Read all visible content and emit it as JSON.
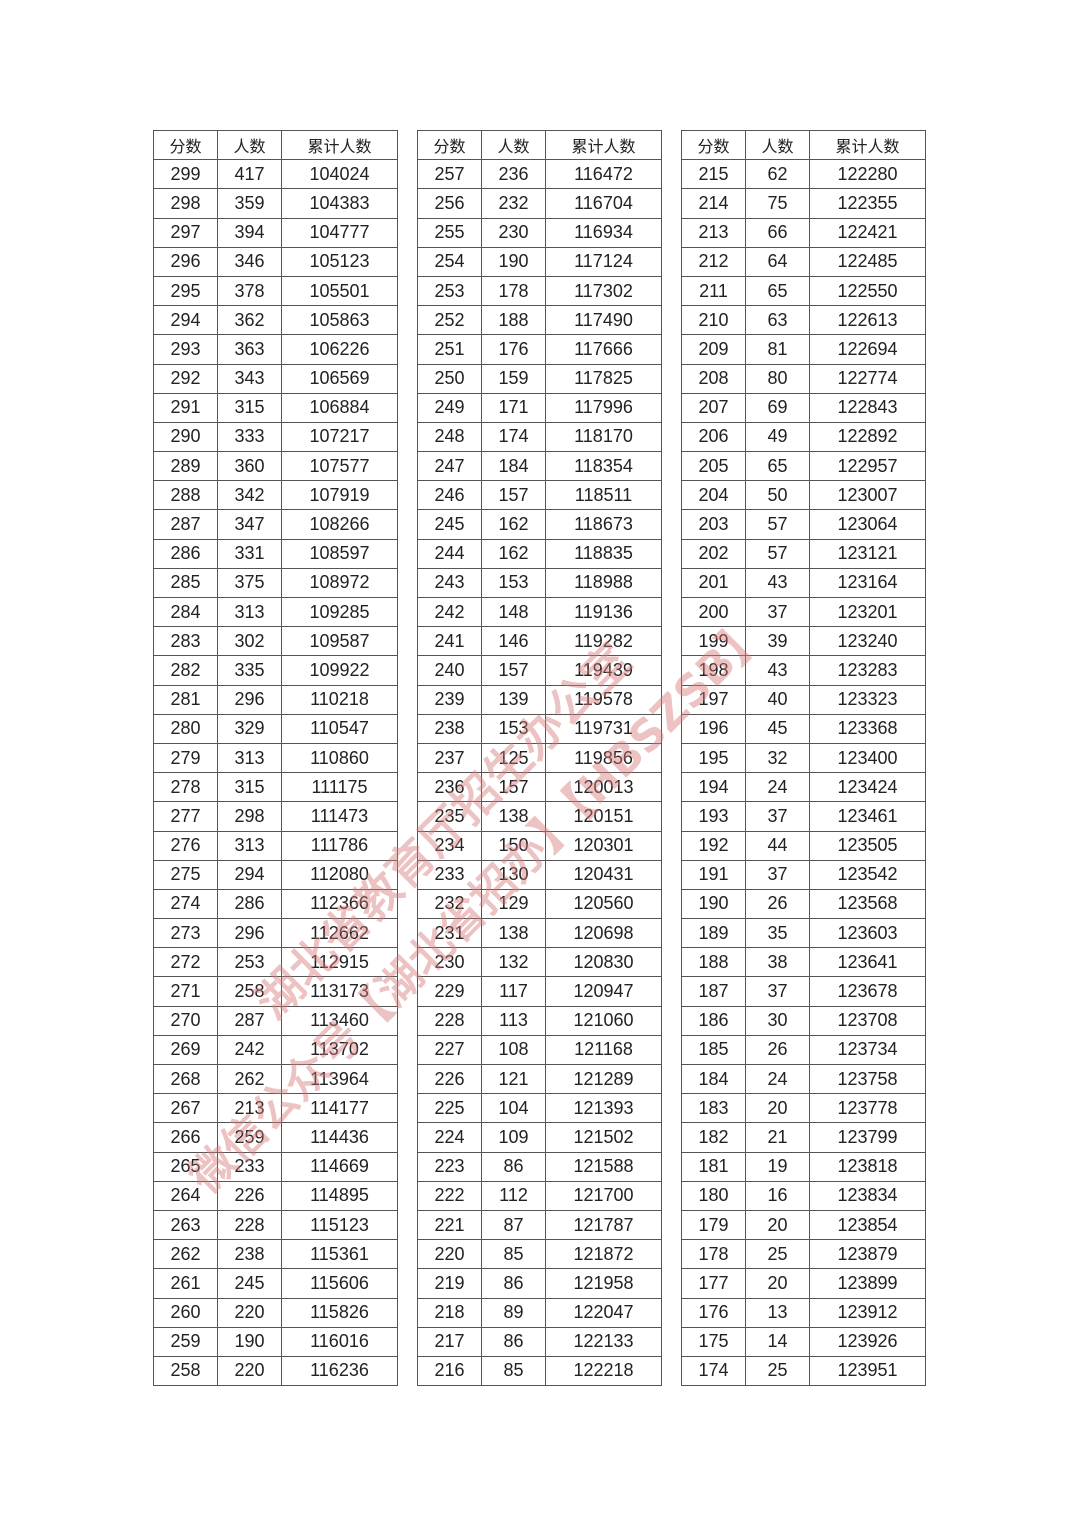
{
  "headers": [
    "分数",
    "人数",
    "累计人数"
  ],
  "watermark": {
    "line1": "湖北省教育厅招生办公室",
    "line2": "微信公众号【湖北省招办】【HBSZSB】",
    "color": "#d87878"
  },
  "tables": [
    {
      "rows": [
        [
          "299",
          "417",
          "104024"
        ],
        [
          "298",
          "359",
          "104383"
        ],
        [
          "297",
          "394",
          "104777"
        ],
        [
          "296",
          "346",
          "105123"
        ],
        [
          "295",
          "378",
          "105501"
        ],
        [
          "294",
          "362",
          "105863"
        ],
        [
          "293",
          "363",
          "106226"
        ],
        [
          "292",
          "343",
          "106569"
        ],
        [
          "291",
          "315",
          "106884"
        ],
        [
          "290",
          "333",
          "107217"
        ],
        [
          "289",
          "360",
          "107577"
        ],
        [
          "288",
          "342",
          "107919"
        ],
        [
          "287",
          "347",
          "108266"
        ],
        [
          "286",
          "331",
          "108597"
        ],
        [
          "285",
          "375",
          "108972"
        ],
        [
          "284",
          "313",
          "109285"
        ],
        [
          "283",
          "302",
          "109587"
        ],
        [
          "282",
          "335",
          "109922"
        ],
        [
          "281",
          "296",
          "110218"
        ],
        [
          "280",
          "329",
          "110547"
        ],
        [
          "279",
          "313",
          "110860"
        ],
        [
          "278",
          "315",
          "111175"
        ],
        [
          "277",
          "298",
          "111473"
        ],
        [
          "276",
          "313",
          "111786"
        ],
        [
          "275",
          "294",
          "112080"
        ],
        [
          "274",
          "286",
          "112366"
        ],
        [
          "273",
          "296",
          "112662"
        ],
        [
          "272",
          "253",
          "112915"
        ],
        [
          "271",
          "258",
          "113173"
        ],
        [
          "270",
          "287",
          "113460"
        ],
        [
          "269",
          "242",
          "113702"
        ],
        [
          "268",
          "262",
          "113964"
        ],
        [
          "267",
          "213",
          "114177"
        ],
        [
          "266",
          "259",
          "114436"
        ],
        [
          "265",
          "233",
          "114669"
        ],
        [
          "264",
          "226",
          "114895"
        ],
        [
          "263",
          "228",
          "115123"
        ],
        [
          "262",
          "238",
          "115361"
        ],
        [
          "261",
          "245",
          "115606"
        ],
        [
          "260",
          "220",
          "115826"
        ],
        [
          "259",
          "190",
          "116016"
        ],
        [
          "258",
          "220",
          "116236"
        ]
      ]
    },
    {
      "rows": [
        [
          "257",
          "236",
          "116472"
        ],
        [
          "256",
          "232",
          "116704"
        ],
        [
          "255",
          "230",
          "116934"
        ],
        [
          "254",
          "190",
          "117124"
        ],
        [
          "253",
          "178",
          "117302"
        ],
        [
          "252",
          "188",
          "117490"
        ],
        [
          "251",
          "176",
          "117666"
        ],
        [
          "250",
          "159",
          "117825"
        ],
        [
          "249",
          "171",
          "117996"
        ],
        [
          "248",
          "174",
          "118170"
        ],
        [
          "247",
          "184",
          "118354"
        ],
        [
          "246",
          "157",
          "118511"
        ],
        [
          "245",
          "162",
          "118673"
        ],
        [
          "244",
          "162",
          "118835"
        ],
        [
          "243",
          "153",
          "118988"
        ],
        [
          "242",
          "148",
          "119136"
        ],
        [
          "241",
          "146",
          "119282"
        ],
        [
          "240",
          "157",
          "119439"
        ],
        [
          "239",
          "139",
          "119578"
        ],
        [
          "238",
          "153",
          "119731"
        ],
        [
          "237",
          "125",
          "119856"
        ],
        [
          "236",
          "157",
          "120013"
        ],
        [
          "235",
          "138",
          "120151"
        ],
        [
          "234",
          "150",
          "120301"
        ],
        [
          "233",
          "130",
          "120431"
        ],
        [
          "232",
          "129",
          "120560"
        ],
        [
          "231",
          "138",
          "120698"
        ],
        [
          "230",
          "132",
          "120830"
        ],
        [
          "229",
          "117",
          "120947"
        ],
        [
          "228",
          "113",
          "121060"
        ],
        [
          "227",
          "108",
          "121168"
        ],
        [
          "226",
          "121",
          "121289"
        ],
        [
          "225",
          "104",
          "121393"
        ],
        [
          "224",
          "109",
          "121502"
        ],
        [
          "223",
          "86",
          "121588"
        ],
        [
          "222",
          "112",
          "121700"
        ],
        [
          "221",
          "87",
          "121787"
        ],
        [
          "220",
          "85",
          "121872"
        ],
        [
          "219",
          "86",
          "121958"
        ],
        [
          "218",
          "89",
          "122047"
        ],
        [
          "217",
          "86",
          "122133"
        ],
        [
          "216",
          "85",
          "122218"
        ]
      ]
    },
    {
      "rows": [
        [
          "215",
          "62",
          "122280"
        ],
        [
          "214",
          "75",
          "122355"
        ],
        [
          "213",
          "66",
          "122421"
        ],
        [
          "212",
          "64",
          "122485"
        ],
        [
          "211",
          "65",
          "122550"
        ],
        [
          "210",
          "63",
          "122613"
        ],
        [
          "209",
          "81",
          "122694"
        ],
        [
          "208",
          "80",
          "122774"
        ],
        [
          "207",
          "69",
          "122843"
        ],
        [
          "206",
          "49",
          "122892"
        ],
        [
          "205",
          "65",
          "122957"
        ],
        [
          "204",
          "50",
          "123007"
        ],
        [
          "203",
          "57",
          "123064"
        ],
        [
          "202",
          "57",
          "123121"
        ],
        [
          "201",
          "43",
          "123164"
        ],
        [
          "200",
          "37",
          "123201"
        ],
        [
          "199",
          "39",
          "123240"
        ],
        [
          "198",
          "43",
          "123283"
        ],
        [
          "197",
          "40",
          "123323"
        ],
        [
          "196",
          "45",
          "123368"
        ],
        [
          "195",
          "32",
          "123400"
        ],
        [
          "194",
          "24",
          "123424"
        ],
        [
          "193",
          "37",
          "123461"
        ],
        [
          "192",
          "44",
          "123505"
        ],
        [
          "191",
          "37",
          "123542"
        ],
        [
          "190",
          "26",
          "123568"
        ],
        [
          "189",
          "35",
          "123603"
        ],
        [
          "188",
          "38",
          "123641"
        ],
        [
          "187",
          "37",
          "123678"
        ],
        [
          "186",
          "30",
          "123708"
        ],
        [
          "185",
          "26",
          "123734"
        ],
        [
          "184",
          "24",
          "123758"
        ],
        [
          "183",
          "20",
          "123778"
        ],
        [
          "182",
          "21",
          "123799"
        ],
        [
          "181",
          "19",
          "123818"
        ],
        [
          "180",
          "16",
          "123834"
        ],
        [
          "179",
          "20",
          "123854"
        ],
        [
          "178",
          "25",
          "123879"
        ],
        [
          "177",
          "20",
          "123899"
        ],
        [
          "176",
          "13",
          "123912"
        ],
        [
          "175",
          "14",
          "123926"
        ],
        [
          "174",
          "25",
          "123951"
        ]
      ]
    }
  ]
}
